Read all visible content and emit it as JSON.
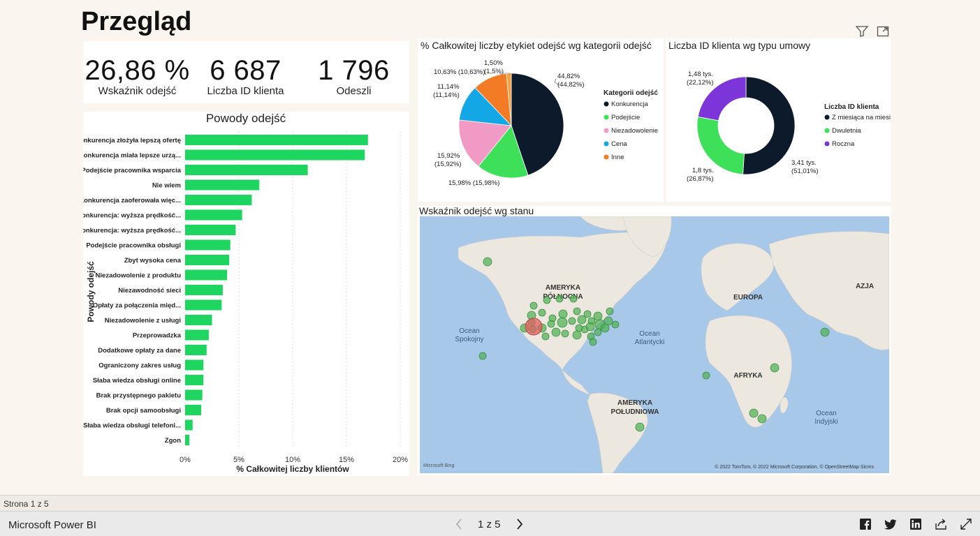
{
  "page": {
    "title": "Przegląd"
  },
  "kpis": [
    {
      "value": "26,86 %",
      "label": "Wskaźnik odejść"
    },
    {
      "value": "6 687",
      "label": "Liczba ID klienta"
    },
    {
      "value": "1 796",
      "label": "Odeszli"
    }
  ],
  "bar_chart": {
    "title": "Powody odejść",
    "ylabel": "Powody odejść",
    "xlabel": "% Całkowitej liczby klientów",
    "ticks": [
      "0%",
      "5%",
      "10%",
      "15%",
      "20%"
    ],
    "color": "#1ed65f"
  },
  "pie_chart": {
    "title": "% Całkowitej liczby etykiet odejść wg kategorii odejść",
    "legend_title": "Kategorii odejść",
    "slices": [
      {
        "name": "Konkurencja",
        "label_1": "44,82%",
        "label_2": "(44,82%)",
        "color": "#0c1a2b"
      },
      {
        "name": "Podejście",
        "label_1": "15,98% (15,98%)",
        "label_2": "",
        "color": "#3ee05a"
      },
      {
        "name": "Niezadowolenie",
        "label_1": "15,92%",
        "label_2": "(15,92%)",
        "color": "#f29ac6"
      },
      {
        "name": "Cena",
        "label_1": "11,14%",
        "label_2": "(11,14%)",
        "color": "#14a7e6"
      },
      {
        "name": "Inne",
        "label_1": "10,63% (10,63%)",
        "label_2": "",
        "color": "#f47b25"
      },
      {
        "name": "",
        "label_1": "1,50%",
        "label_2": "(1,5%)",
        "color": "#f4a340"
      }
    ]
  },
  "donut_chart": {
    "title": "Liczba ID klienta wg typu umowy",
    "legend_title": "Liczba ID klienta",
    "slices": [
      {
        "name": "Z miesiąca na miesiąc",
        "label_1": "3,41 tys.",
        "label_2": "(51,01%)",
        "color": "#0c1a2b"
      },
      {
        "name": "Dwuletnia",
        "label_1": "1,8 tys.",
        "label_2": "(26,87%)",
        "color": "#3ee05a"
      },
      {
        "name": "Roczna",
        "label_1": "1,48 tys.",
        "label_2": "(22,12%)",
        "color": "#7b35d8"
      }
    ]
  },
  "map": {
    "title": "Wskaźnik odejść wg stanu",
    "labels": {
      "north_america_1": "AMERYKA",
      "north_america_2": "PÓŁNOCNA",
      "europe": "EUROPA",
      "asia": "AZJA",
      "africa": "AFRYKA",
      "south_america_1": "AMERYKA",
      "south_america_2": "POŁUDNIOWA",
      "pacific_1": "Ocean",
      "pacific_2": "Spokojny",
      "atlantic_1": "Ocean",
      "atlantic_2": "Atlantycki",
      "indian_1": "Ocean",
      "indian_2": "Indyjski"
    },
    "attribution": "© 2022 TomTom, © 2022 Microsoft Corporation, © OpenStreetMap  Sicms",
    "bing": "Microsoft Bing",
    "marker_color": "#4caf50",
    "highlight_color": "#e06060"
  },
  "chart_data": [
    {
      "type": "bar",
      "title": "Powody odejść",
      "xlabel": "% Całkowitej liczby klientów",
      "ylabel": "Powody odejść",
      "xlim": [
        0,
        20
      ],
      "categories": [
        "Konkurencja złożyła lepszą ofertę",
        "Konkurencja miała lepsze urzą...",
        "Podejście pracownika wsparcia",
        "Nie wiem",
        "Konkurencja zaoferowała więc...",
        "Konkurencja: wyższa prędkość...",
        "Konkurencja: wyższa prędkość...",
        "Podejście pracownika obsługi",
        "Zbyt wysoka cena",
        "Niezadowolenie z produktu",
        "Niezawodność sieci",
        "Opłaty za połączenia międ...",
        "Niezadowolenie z usługi",
        "Przeprowadzka",
        "Dodatkowe opłaty za dane",
        "Ograniczony zakres usług",
        "Słaba wiedza obsługi online",
        "Brak przystępnego pakietu",
        "Brak opcji samoobsługi",
        "Słaba wiedza obsługi telefoni...",
        "Zgon"
      ],
      "values": [
        17.0,
        16.7,
        11.4,
        6.9,
        6.2,
        5.3,
        4.7,
        4.2,
        4.1,
        3.9,
        3.5,
        3.4,
        2.5,
        2.2,
        2.0,
        1.7,
        1.7,
        1.6,
        1.5,
        0.7,
        0.4
      ]
    },
    {
      "type": "pie",
      "title": "% Całkowitej liczby etykiet odejść wg kategorii odejść",
      "categories": [
        "Konkurencja",
        "Podejście",
        "Niezadowolenie",
        "Cena",
        "Inne",
        ""
      ],
      "values": [
        44.82,
        15.98,
        15.92,
        11.14,
        10.63,
        1.5
      ]
    },
    {
      "type": "pie",
      "title": "Liczba ID klienta wg typu umowy",
      "categories": [
        "Z miesiąca na miesiąc",
        "Dwuletnia",
        "Roczna"
      ],
      "values": [
        51.01,
        26.87,
        22.12
      ]
    }
  ],
  "status": {
    "page": "Strona 1 z 5"
  },
  "footer": {
    "brand": "Microsoft Power BI",
    "pager": "1 z 5"
  }
}
